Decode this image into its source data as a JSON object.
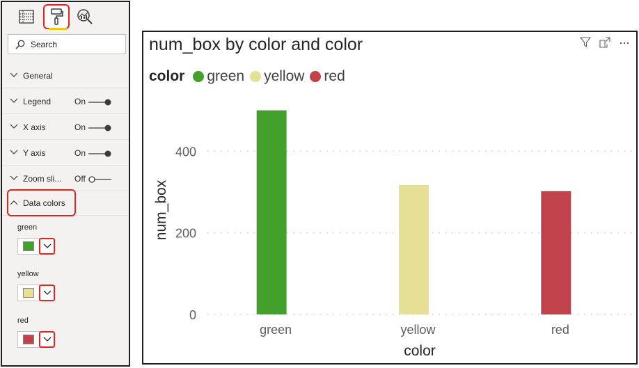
{
  "format_pane": {
    "tabs": [
      {
        "icon": "fields-grid-icon"
      },
      {
        "icon": "format-paint-roller-icon",
        "active": true
      },
      {
        "icon": "analytics-magnifier-icon"
      }
    ],
    "search": {
      "placeholder": "Search"
    },
    "sections": [
      {
        "label": "General",
        "toggle": ""
      },
      {
        "label": "Legend",
        "toggle": "On"
      },
      {
        "label": "X axis",
        "toggle": "On"
      },
      {
        "label": "Y axis",
        "toggle": "On"
      },
      {
        "label": "Zoom sli...",
        "toggle": "Off"
      },
      {
        "label": "Data colors",
        "toggle": "",
        "expanded": true
      }
    ],
    "data_colors": [
      {
        "name": "green",
        "color": "#44a02d"
      },
      {
        "name": "yellow",
        "color": "#e6df96"
      },
      {
        "name": "red",
        "color": "#c1424a"
      }
    ]
  },
  "visual": {
    "title": "num_box by color and color",
    "legend": {
      "title": "color",
      "items": [
        {
          "label": "green",
          "color": "#44a02d"
        },
        {
          "label": "yellow",
          "color": "#e6df96"
        },
        {
          "label": "red",
          "color": "#c1424a"
        }
      ]
    }
  },
  "chart_data": {
    "type": "bar",
    "categories": [
      "green",
      "yellow",
      "red"
    ],
    "values": [
      500,
      317,
      302
    ],
    "colors": [
      "#44a02d",
      "#e6df96",
      "#c1424a"
    ],
    "title": "num_box by color and color",
    "xlabel": "color",
    "ylabel": "num_box",
    "ylim": [
      0,
      530
    ],
    "yticks": [
      0,
      200,
      400
    ],
    "grid": true,
    "legend": "top-left"
  }
}
